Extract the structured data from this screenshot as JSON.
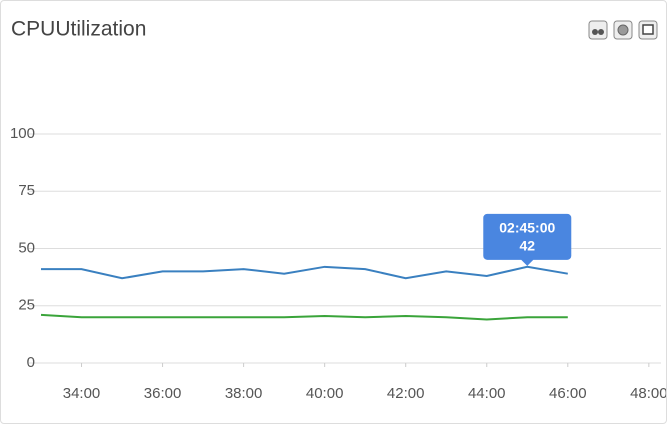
{
  "chart_data": {
    "type": "line",
    "title": "CPUUtilization",
    "x": [
      33,
      34,
      35,
      36,
      37,
      38,
      39,
      40,
      41,
      42,
      43,
      44,
      45,
      46
    ],
    "series": [
      {
        "color": "#3a80c0",
        "values": [
          41,
          41,
          37,
          40,
          40,
          41,
          39,
          42,
          41,
          37,
          40,
          38,
          42,
          39
        ]
      },
      {
        "color": "#3aa43a",
        "values": [
          21,
          20,
          20,
          20,
          20,
          20,
          20,
          20.5,
          20,
          20.5,
          20,
          19,
          20,
          20
        ]
      }
    ],
    "xlim": [
      33,
      48.3
    ],
    "xticks": [
      {
        "value": 34,
        "label": "34:00"
      },
      {
        "value": 36,
        "label": "36:00"
      },
      {
        "value": 38,
        "label": "38:00"
      },
      {
        "value": 40,
        "label": "40:00"
      },
      {
        "value": 42,
        "label": "42:00"
      },
      {
        "value": 44,
        "label": "44:00"
      },
      {
        "value": 46,
        "label": "46:00"
      },
      {
        "value": 48,
        "label": "48:00"
      }
    ],
    "ylim": [
      0,
      100
    ],
    "yticks": [
      0,
      25,
      50,
      75,
      100
    ],
    "grid": true,
    "tooltip": {
      "x": 45,
      "title": "02:45:00",
      "value": 42,
      "color": "#4a86e0"
    }
  }
}
